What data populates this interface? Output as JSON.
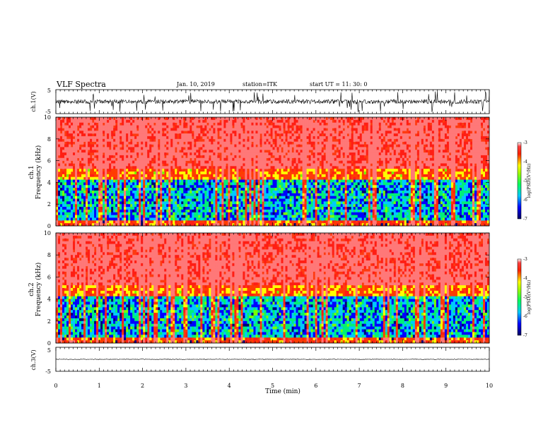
{
  "header": {
    "title": "VLF Spectra",
    "date": "Jan. 10, 2019",
    "station": "station=ITK",
    "start": "start UT =  11: 30: 0"
  },
  "chart_data": [
    {
      "type": "line",
      "panel": "ch1-waveform",
      "ylabel": "ch.1(V)",
      "ylim": [
        -5,
        5
      ],
      "yticks": [
        "5",
        "-5"
      ],
      "xlim": [
        0,
        10
      ]
    },
    {
      "type": "heatmap",
      "panel": "ch1-spectrogram",
      "ylabel_top": "ch.1",
      "ylabel": "Frequency (kHz)",
      "ylim": [
        0,
        10
      ],
      "yticks": [
        "0",
        "2",
        "4",
        "6",
        "8",
        "10"
      ],
      "colorbar": {
        "label": "log(PSD)(V²/Hz)",
        "range": [
          -7,
          -3
        ],
        "ticks": [
          "-3",
          "-4",
          "-5",
          "-6",
          "-7"
        ]
      },
      "xlim": [
        0,
        10
      ]
    },
    {
      "type": "heatmap",
      "panel": "ch2-spectrogram",
      "ylabel_top": "ch.2",
      "ylabel": "Frequency (kHz)",
      "ylim": [
        0,
        10
      ],
      "yticks": [
        "0",
        "2",
        "4",
        "6",
        "8",
        "10"
      ],
      "colorbar": {
        "label": "log(PSD)(V²/Hz)",
        "range": [
          -7,
          -3
        ],
        "ticks": [
          "-3",
          "-4",
          "-5",
          "-6",
          "-7"
        ]
      },
      "xlim": [
        0,
        10
      ]
    },
    {
      "type": "line",
      "panel": "ch3-waveform",
      "ylabel": "ch.3(V)",
      "ylim": [
        -5,
        5
      ],
      "yticks": [
        "5",
        "-5"
      ],
      "xlabel": "Time (min)",
      "xlim": [
        0,
        10
      ],
      "xticks": [
        "0",
        "1",
        "2",
        "3",
        "4",
        "5",
        "6",
        "7",
        "8",
        "9",
        "10"
      ]
    }
  ],
  "colors": {
    "low": "#00008b",
    "mid": "#00e000",
    "high": "#ff2000"
  }
}
